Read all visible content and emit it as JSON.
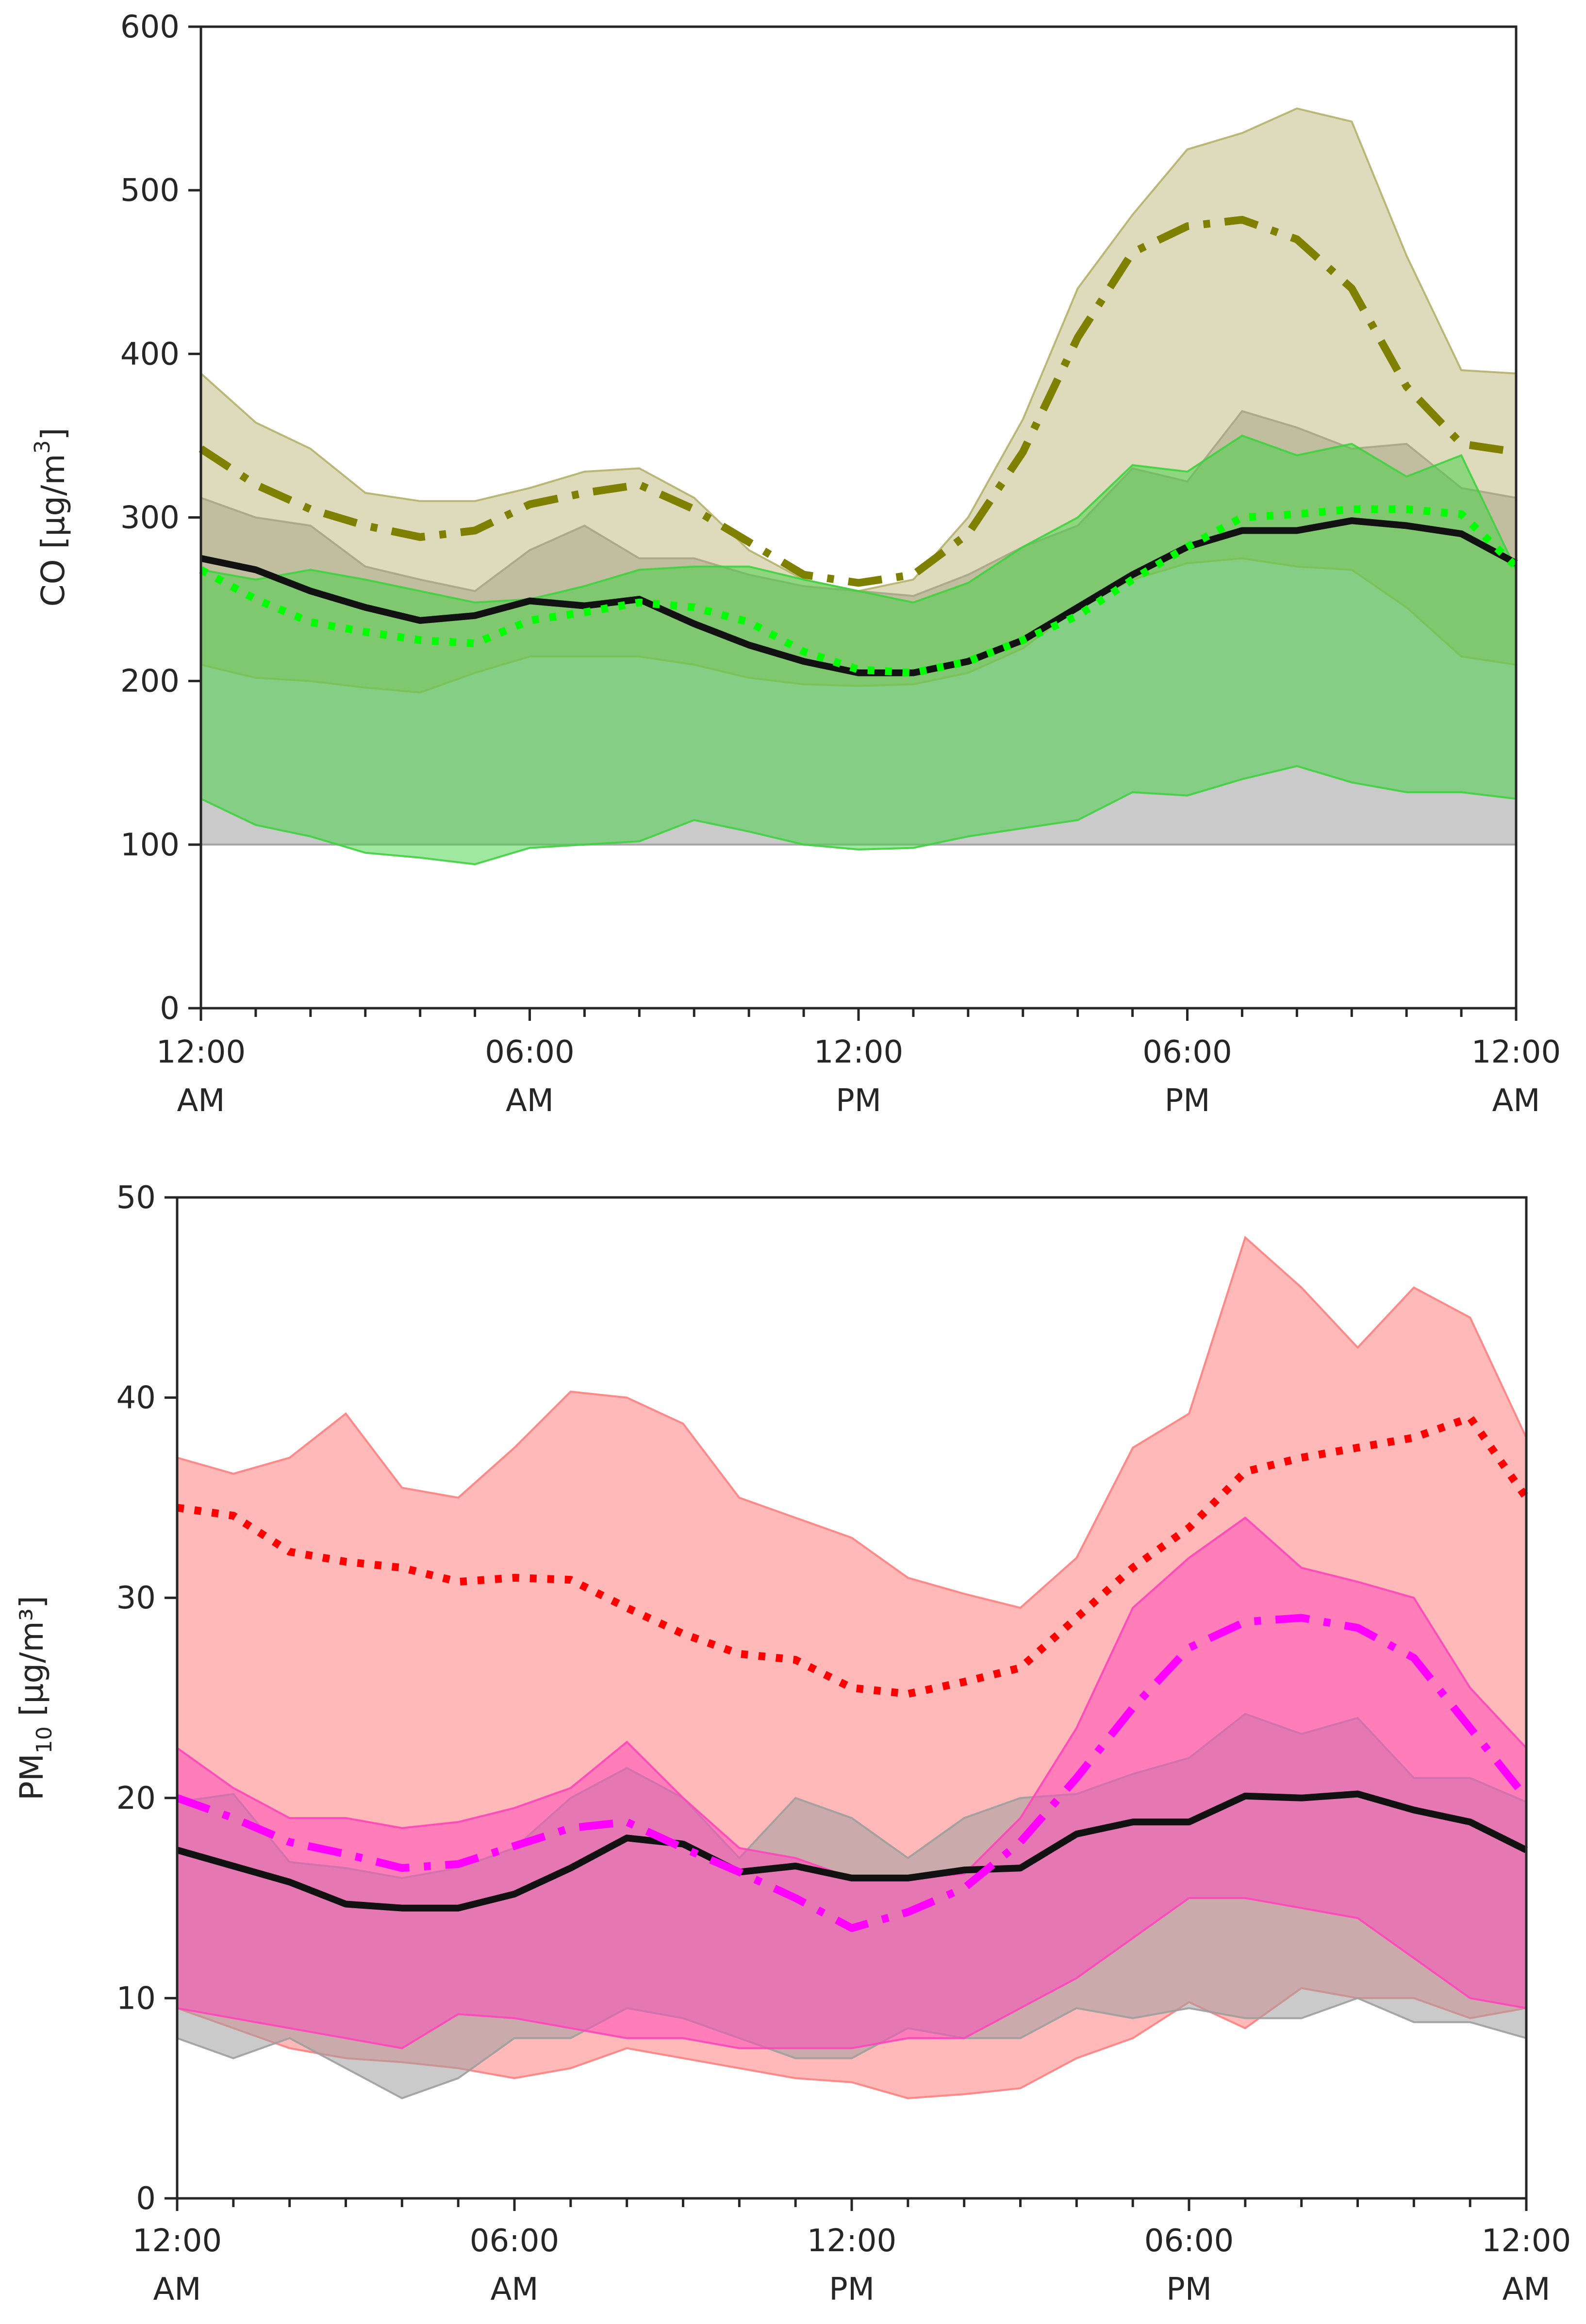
{
  "colors": {
    "black": "#111111",
    "gray_band": "#9e9e9e",
    "olive": "#808000",
    "olive_band": "#b5b06a",
    "green": "#00ff00",
    "green_band": "#3fd23f",
    "red": "#ff0000",
    "red_band": "#ff8080",
    "magenta": "#ff00ff",
    "magenta_band": "#ff44bb"
  },
  "chart_data": [
    {
      "type": "line",
      "ylabel_main": "CO [μg/m",
      "ylabel_sup": "3",
      "ylabel_close": "]",
      "ylim": [
        0,
        600
      ],
      "yticks": [
        "0",
        "100",
        "200",
        "300",
        "400",
        "500",
        "600"
      ],
      "xlim": [
        0,
        24
      ],
      "xticks": [
        {
          "hour": 0,
          "line1": "12:00",
          "line2": "AM"
        },
        {
          "hour": 6,
          "line1": "06:00",
          "line2": "AM"
        },
        {
          "hour": 12,
          "line1": "12:00",
          "line2": "PM"
        },
        {
          "hour": 18,
          "line1": "06:00",
          "line2": "PM"
        },
        {
          "hour": 24,
          "line1": "12:00",
          "line2": "AM"
        }
      ],
      "x": [
        0,
        1,
        2,
        3,
        4,
        5,
        6,
        7,
        8,
        9,
        10,
        11,
        12,
        13,
        14,
        15,
        16,
        17,
        18,
        19,
        20,
        21,
        22,
        23,
        24
      ],
      "series": [
        {
          "name": "gray",
          "style": "solid",
          "mean": [
            275,
            268,
            255,
            245,
            237,
            240,
            249,
            246,
            250,
            235,
            222,
            212,
            205,
            205,
            212,
            225,
            245,
            265,
            282,
            292,
            292,
            298,
            295,
            290,
            272
          ],
          "lower": [
            100,
            100,
            100,
            100,
            100,
            100,
            100,
            100,
            100,
            100,
            100,
            100,
            100,
            100,
            100,
            100,
            100,
            100,
            100,
            100,
            100,
            100,
            100,
            100,
            100
          ],
          "upper": [
            312,
            300,
            295,
            270,
            262,
            255,
            280,
            295,
            275,
            275,
            265,
            258,
            255,
            252,
            265,
            282,
            295,
            330,
            322,
            365,
            355,
            342,
            345,
            318,
            312
          ]
        },
        {
          "name": "olive",
          "style": "dashdot",
          "mean": [
            342,
            320,
            305,
            295,
            288,
            292,
            308,
            315,
            320,
            305,
            285,
            265,
            260,
            265,
            290,
            340,
            410,
            462,
            478,
            482,
            470,
            440,
            380,
            345,
            340
          ],
          "lower": [
            210,
            202,
            200,
            196,
            193,
            205,
            215,
            215,
            215,
            210,
            202,
            198,
            197,
            198,
            205,
            220,
            245,
            262,
            272,
            275,
            270,
            268,
            245,
            215,
            210
          ],
          "upper": [
            388,
            358,
            342,
            315,
            310,
            310,
            318,
            328,
            330,
            312,
            280,
            262,
            255,
            262,
            300,
            360,
            440,
            485,
            525,
            535,
            550,
            542,
            460,
            390,
            388
          ]
        },
        {
          "name": "green",
          "style": "dotted",
          "mean": [
            268,
            250,
            236,
            230,
            225,
            223,
            237,
            242,
            248,
            245,
            236,
            218,
            207,
            205,
            212,
            225,
            240,
            262,
            282,
            300,
            302,
            305,
            305,
            302,
            270
          ],
          "lower": [
            128,
            112,
            105,
            95,
            92,
            88,
            98,
            100,
            102,
            115,
            108,
            100,
            97,
            98,
            105,
            110,
            115,
            132,
            130,
            140,
            148,
            138,
            132,
            132,
            128
          ],
          "upper": [
            268,
            262,
            268,
            262,
            255,
            248,
            250,
            258,
            268,
            270,
            270,
            262,
            255,
            248,
            260,
            282,
            300,
            332,
            328,
            350,
            338,
            345,
            325,
            338,
            268
          ]
        }
      ]
    },
    {
      "type": "line",
      "ylabel_main": "PM",
      "ylabel_sub": "10",
      "ylabel_rest": " [μg/m³]",
      "ylim": [
        0,
        50
      ],
      "yticks": [
        "0",
        "10",
        "20",
        "30",
        "40",
        "50"
      ],
      "xlim": [
        0,
        24
      ],
      "xticks": [
        {
          "hour": 0,
          "line1": "12:00",
          "line2": "AM"
        },
        {
          "hour": 6,
          "line1": "06:00",
          "line2": "AM"
        },
        {
          "hour": 12,
          "line1": "12:00",
          "line2": "PM"
        },
        {
          "hour": 18,
          "line1": "06:00",
          "line2": "PM"
        },
        {
          "hour": 24,
          "line1": "12:00",
          "line2": "AM"
        }
      ],
      "x": [
        0,
        1,
        2,
        3,
        4,
        5,
        6,
        7,
        8,
        9,
        10,
        11,
        12,
        13,
        14,
        15,
        16,
        17,
        18,
        19,
        20,
        21,
        22,
        23,
        24
      ],
      "series": [
        {
          "name": "gray",
          "style": "solid",
          "mean": [
            17.4,
            16.6,
            15.8,
            14.7,
            14.5,
            14.5,
            15.2,
            16.5,
            18.0,
            17.7,
            16.3,
            16.6,
            16.0,
            16.0,
            16.4,
            16.5,
            18.2,
            18.8,
            18.8,
            20.1,
            20.0,
            20.2,
            19.4,
            18.8,
            17.4
          ],
          "lower": [
            8.0,
            7.0,
            8.0,
            6.5,
            5.0,
            6.0,
            8.0,
            8.0,
            9.5,
            9.0,
            8.0,
            7.0,
            7.0,
            8.5,
            8.0,
            8.0,
            9.5,
            9.0,
            9.5,
            9.0,
            9.0,
            10.0,
            8.8,
            8.8,
            8.0
          ],
          "upper": [
            19.8,
            20.2,
            16.8,
            16.5,
            16.0,
            16.5,
            17.5,
            20.0,
            21.5,
            20.0,
            17.0,
            20.0,
            19.0,
            17.0,
            19.0,
            20.0,
            20.2,
            21.2,
            22.0,
            24.2,
            23.2,
            24.0,
            21.0,
            21.0,
            19.8
          ]
        },
        {
          "name": "red",
          "style": "dotted",
          "mean": [
            34.5,
            34.1,
            32.3,
            31.8,
            31.5,
            30.8,
            31.0,
            30.9,
            29.5,
            28.2,
            27.2,
            26.9,
            25.5,
            25.2,
            25.8,
            26.5,
            29.0,
            31.5,
            33.5,
            36.3,
            37.0,
            37.5,
            38.0,
            39.0,
            35.0
          ],
          "lower": [
            9.5,
            8.5,
            7.5,
            7.0,
            6.8,
            6.5,
            6.0,
            6.5,
            7.5,
            7.0,
            6.5,
            6.0,
            5.8,
            5.0,
            5.2,
            5.5,
            7.0,
            8.0,
            9.8,
            8.5,
            10.5,
            10.0,
            10.0,
            9.0,
            9.5
          ],
          "upper": [
            37.0,
            36.2,
            37.0,
            39.2,
            35.5,
            35.0,
            37.5,
            40.3,
            40.0,
            38.7,
            35.0,
            34.0,
            33.0,
            31.0,
            30.2,
            29.5,
            32.0,
            37.5,
            39.2,
            48.0,
            45.5,
            42.5,
            45.5,
            44.0,
            38.0
          ]
        },
        {
          "name": "magenta",
          "style": "dashdot",
          "mean": [
            20.0,
            19.0,
            17.8,
            17.2,
            16.5,
            16.7,
            17.6,
            18.5,
            18.8,
            17.5,
            16.3,
            15.0,
            13.5,
            14.3,
            15.5,
            17.8,
            21.0,
            24.5,
            27.5,
            28.8,
            29.0,
            28.5,
            27.0,
            23.5,
            20.0
          ],
          "lower": [
            9.5,
            9.0,
            8.5,
            8.0,
            7.5,
            9.2,
            9.0,
            8.5,
            8.0,
            8.0,
            7.5,
            7.5,
            7.5,
            8.0,
            8.0,
            9.5,
            11.0,
            13.0,
            15.0,
            15.0,
            14.5,
            14.0,
            12.0,
            10.0,
            9.5
          ],
          "upper": [
            22.5,
            20.5,
            19.0,
            19.0,
            18.5,
            18.8,
            19.5,
            20.5,
            22.8,
            20.0,
            17.5,
            17.0,
            16.0,
            16.0,
            16.2,
            19.0,
            23.5,
            29.5,
            32.0,
            34.0,
            31.5,
            30.8,
            30.0,
            25.5,
            22.5
          ]
        }
      ]
    }
  ]
}
